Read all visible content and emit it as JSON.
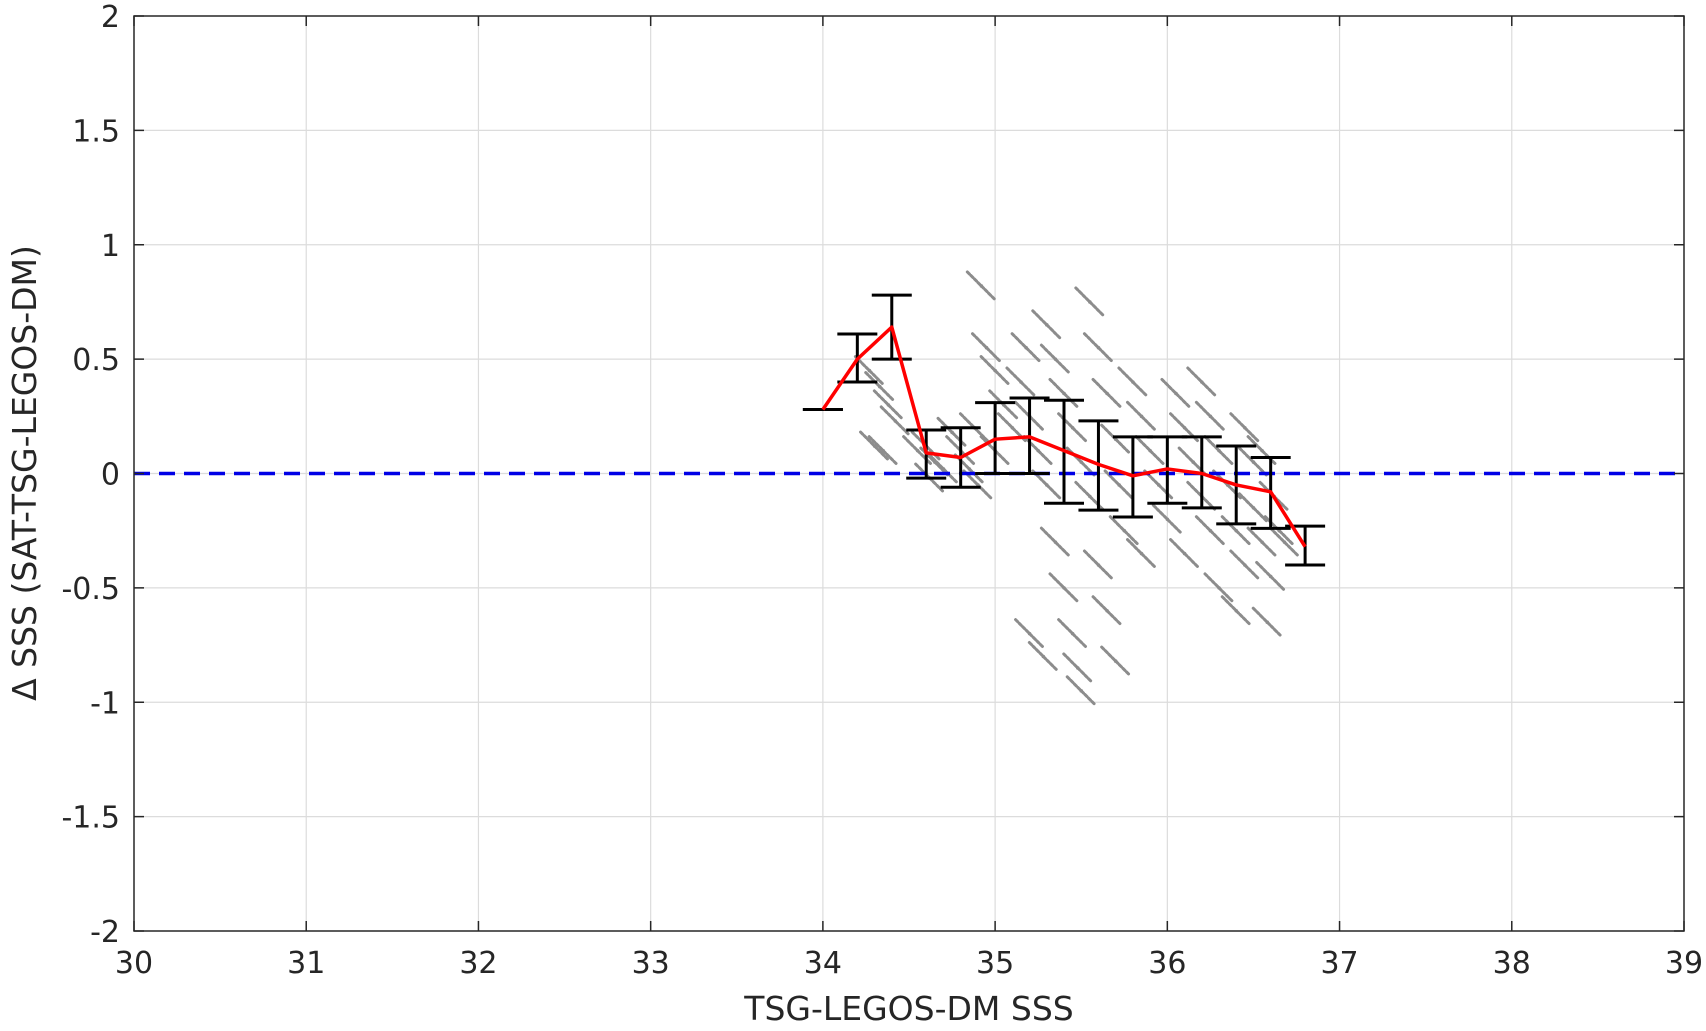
{
  "chart_data": {
    "type": "scatter",
    "title": "",
    "xlabel": "TSG-LEGOS-DM SSS",
    "ylabel": "Δ SSS (SAT-TSG-LEGOS-DM)",
    "xlim": [
      30,
      39
    ],
    "ylim": [
      -2,
      2
    ],
    "xticks": [
      30,
      31,
      32,
      33,
      34,
      35,
      36,
      37,
      38,
      39
    ],
    "yticks": [
      -2,
      -1.5,
      -1,
      -0.5,
      0,
      0.5,
      1,
      1.5,
      2
    ],
    "xtick_labels": [
      "30",
      "31",
      "32",
      "33",
      "34",
      "35",
      "36",
      "37",
      "38",
      "39"
    ],
    "ytick_labels": [
      "-2",
      "-1.5",
      "-1",
      "-0.5",
      "0",
      "0.5",
      "1",
      "1.5",
      "2"
    ],
    "grid": true,
    "legend": "none",
    "reference_line": {
      "y": 0,
      "style": "dashed",
      "color": "#0000e6"
    },
    "colors": {
      "scatter": "#8c8c8c",
      "mean_line": "#ff0000",
      "error_bars": "#000000",
      "grid": "#dcdcdc",
      "axes": "#262626"
    },
    "scatter_description": "dense cloud of individual points between SSS 34.2 and 36.7, roughly following the binned mean with spread about ±0.4",
    "scatter_points": [
      [
        34.27,
        0.45
      ],
      [
        34.33,
        0.38
      ],
      [
        34.38,
        0.3
      ],
      [
        34.42,
        0.23
      ],
      [
        34.3,
        0.12
      ],
      [
        34.35,
        0.1
      ],
      [
        34.55,
        0.1
      ],
      [
        34.6,
        0.12
      ],
      [
        34.65,
        0.05
      ],
      [
        34.7,
        0.02
      ],
      [
        34.62,
        -0.02
      ],
      [
        34.75,
        0.18
      ],
      [
        34.8,
        0.1
      ],
      [
        34.85,
        0.02
      ],
      [
        34.9,
        -0.05
      ],
      [
        34.88,
        0.2
      ],
      [
        34.92,
        0.82
      ],
      [
        34.95,
        0.55
      ],
      [
        35.0,
        0.45
      ],
      [
        35.05,
        0.3
      ],
      [
        35.1,
        0.2
      ],
      [
        35.0,
        0.1
      ],
      [
        35.15,
        0.4
      ],
      [
        35.2,
        0.25
      ],
      [
        35.25,
        0.1
      ],
      [
        35.3,
        -0.05
      ],
      [
        35.18,
        0.55
      ],
      [
        35.3,
        0.65
      ],
      [
        35.35,
        0.5
      ],
      [
        35.4,
        0.35
      ],
      [
        35.45,
        0.2
      ],
      [
        35.5,
        0.05
      ],
      [
        35.55,
        -0.1
      ],
      [
        35.35,
        -0.3
      ],
      [
        35.4,
        -0.5
      ],
      [
        35.45,
        -0.7
      ],
      [
        35.48,
        -0.85
      ],
      [
        35.5,
        -0.95
      ],
      [
        35.2,
        -0.7
      ],
      [
        35.28,
        -0.8
      ],
      [
        35.55,
        0.75
      ],
      [
        35.6,
        0.55
      ],
      [
        35.65,
        0.35
      ],
      [
        35.7,
        0.15
      ],
      [
        35.72,
        -0.05
      ],
      [
        35.75,
        -0.25
      ],
      [
        35.6,
        -0.4
      ],
      [
        35.65,
        -0.6
      ],
      [
        35.7,
        -0.82
      ],
      [
        35.8,
        0.4
      ],
      [
        35.85,
        0.25
      ],
      [
        35.9,
        0.1
      ],
      [
        35.95,
        -0.05
      ],
      [
        36.0,
        -0.2
      ],
      [
        35.85,
        -0.35
      ],
      [
        36.05,
        0.35
      ],
      [
        36.1,
        0.2
      ],
      [
        36.15,
        0.05
      ],
      [
        36.2,
        -0.1
      ],
      [
        36.25,
        -0.25
      ],
      [
        36.1,
        -0.35
      ],
      [
        36.2,
        0.4
      ],
      [
        36.25,
        0.25
      ],
      [
        36.3,
        0.1
      ],
      [
        36.35,
        -0.05
      ],
      [
        36.4,
        -0.25
      ],
      [
        36.45,
        -0.4
      ],
      [
        36.3,
        -0.5
      ],
      [
        36.4,
        -0.6
      ],
      [
        36.5,
        -0.15
      ],
      [
        36.55,
        -0.3
      ],
      [
        36.6,
        -0.45
      ],
      [
        36.65,
        -0.25
      ],
      [
        36.45,
        0.2
      ],
      [
        36.5,
        0.05
      ],
      [
        36.55,
        0.1
      ],
      [
        36.62,
        -0.1
      ],
      [
        36.68,
        -0.3
      ],
      [
        36.58,
        -0.65
      ]
    ],
    "series": [
      {
        "type": "line",
        "x": [
          34.0,
          34.2,
          34.4,
          34.6,
          34.8,
          35.0,
          35.2,
          35.4,
          35.6,
          35.8,
          36.0,
          36.2,
          36.4,
          36.6,
          36.8
        ],
        "values": [
          0.28,
          0.5,
          0.64,
          0.09,
          0.07,
          0.15,
          0.16,
          0.1,
          0.04,
          -0.01,
          0.02,
          0.0,
          -0.05,
          -0.08,
          -0.32
        ]
      },
      {
        "type": "errorbar",
        "x": [
          34.0,
          34.2,
          34.4,
          34.6,
          34.8,
          35.0,
          35.2,
          35.4,
          35.6,
          35.8,
          36.0,
          36.2,
          36.4,
          36.6,
          36.8
        ],
        "lower": [
          0.28,
          0.4,
          0.5,
          -0.02,
          -0.06,
          0.0,
          0.0,
          -0.13,
          -0.16,
          -0.19,
          -0.13,
          -0.15,
          -0.22,
          -0.24,
          -0.4
        ],
        "upper": [
          0.28,
          0.61,
          0.78,
          0.19,
          0.2,
          0.31,
          0.33,
          0.32,
          0.23,
          0.16,
          0.16,
          0.16,
          0.12,
          0.07,
          -0.23
        ]
      }
    ]
  }
}
